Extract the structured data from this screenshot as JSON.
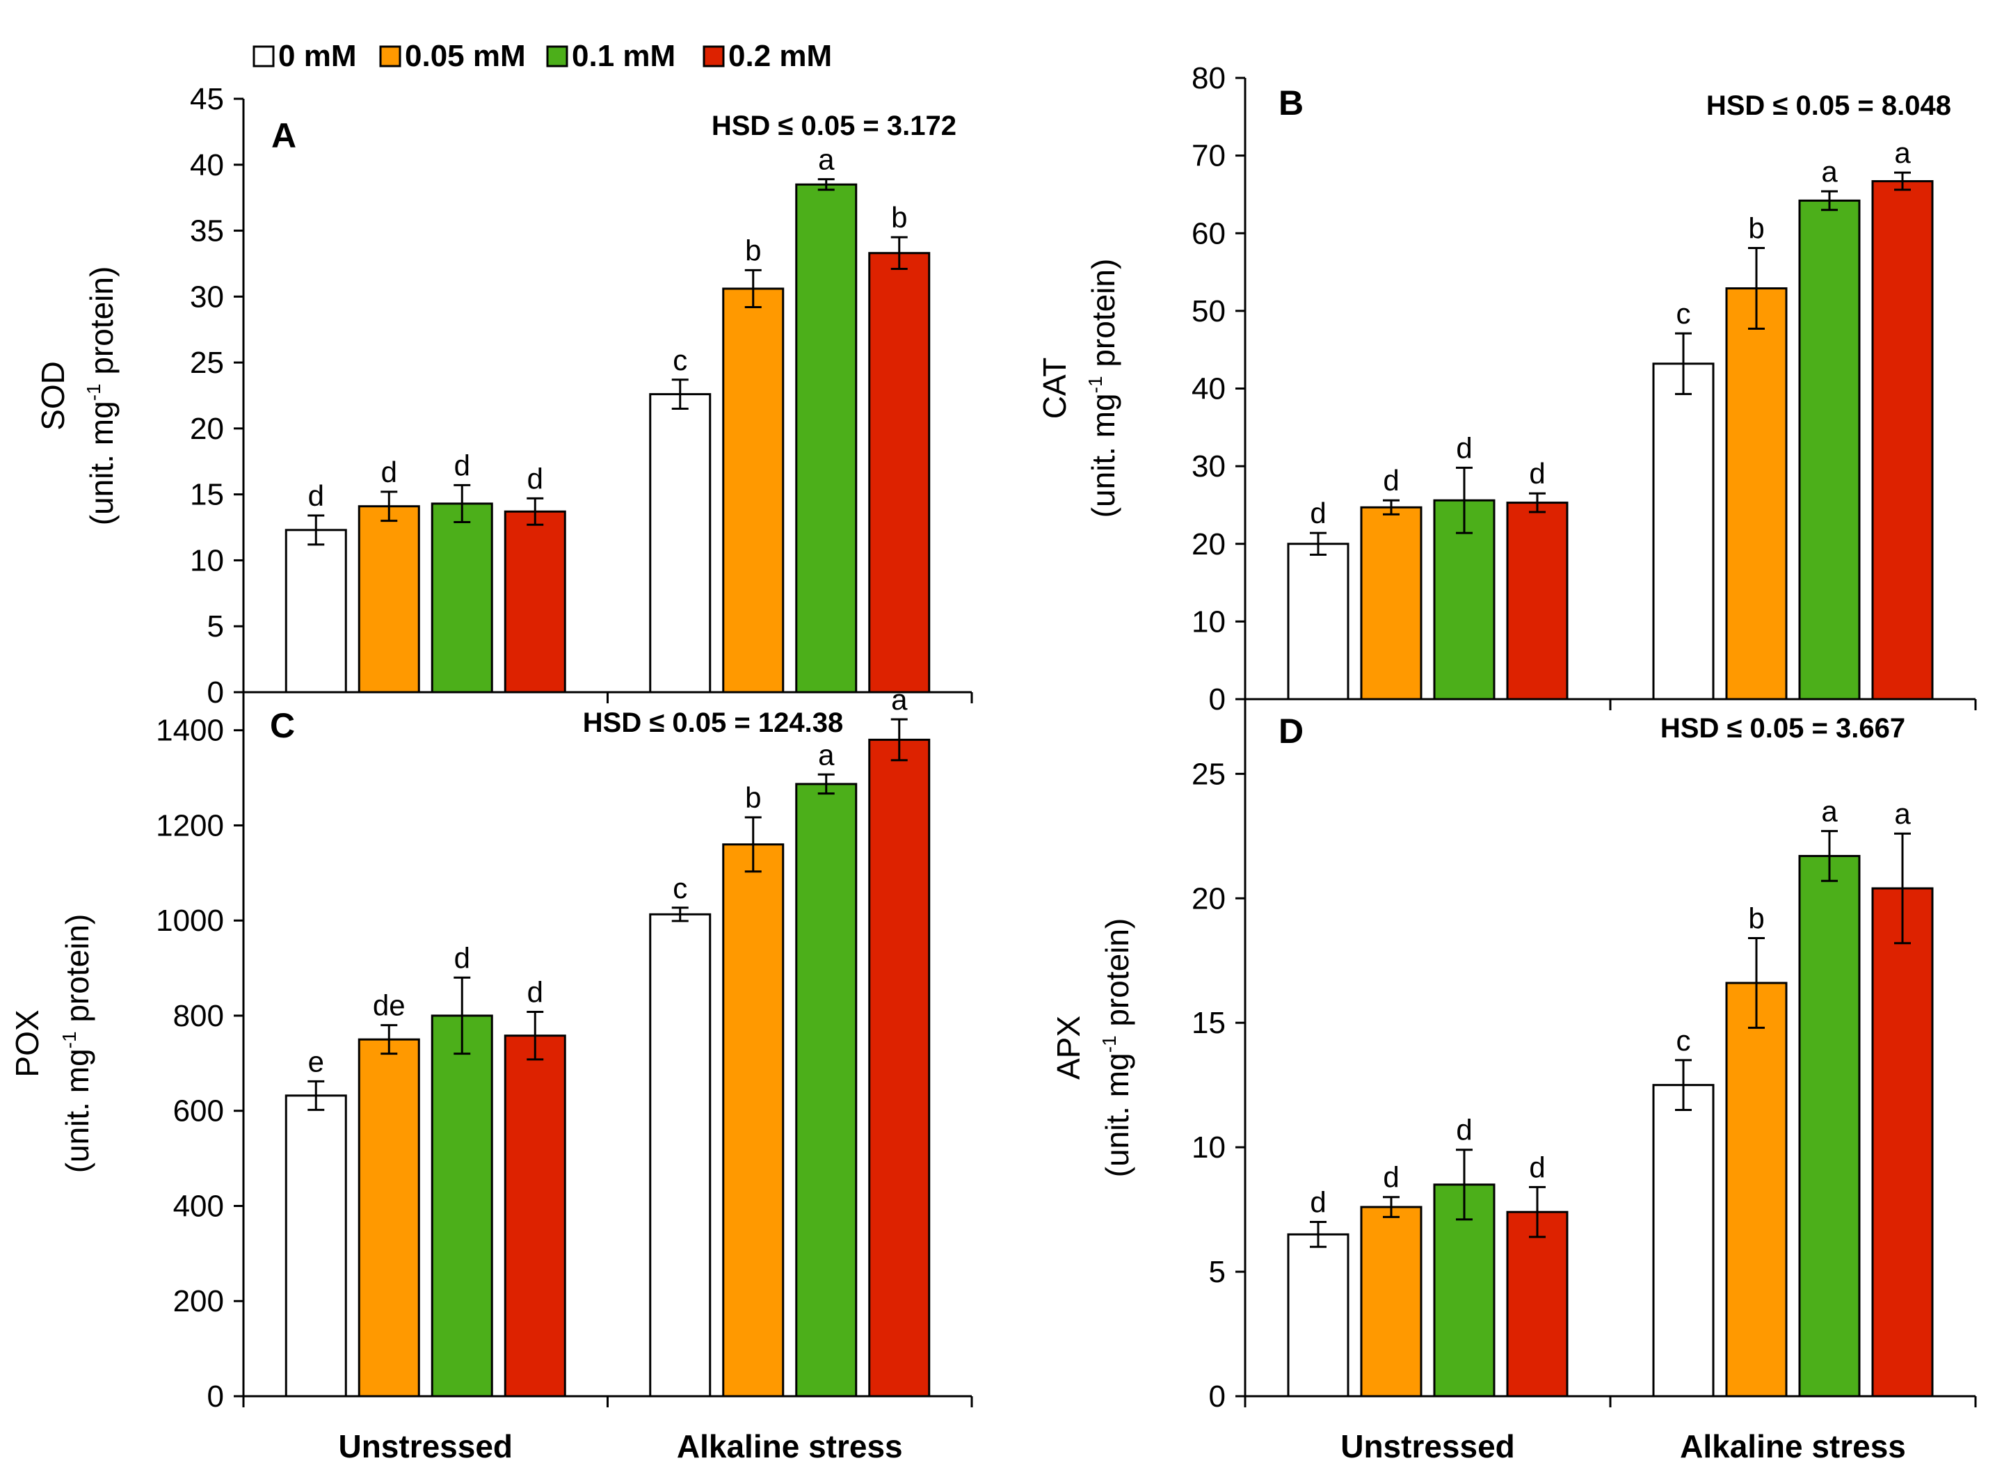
{
  "legend": [
    {
      "label": "0 mM",
      "color": "#ffffff"
    },
    {
      "label": "0.05 mM",
      "color": "#ff9900"
    },
    {
      "label": "0.1 mM",
      "color": "#4caf1a"
    },
    {
      "label": "0.2 mM",
      "color": "#dd2200"
    }
  ],
  "chart_data": [
    {
      "type": "bar",
      "panel": "A",
      "ylabel": "SOD",
      "ylabel_unit_pre": "(unit. mg",
      "ylabel_unit_sup": "-1",
      "ylabel_unit_post": " protein)",
      "hsd": "HSD ≤ 0.05 = 3.172",
      "ylim": [
        0,
        45
      ],
      "yticks": [
        0,
        5,
        10,
        15,
        20,
        25,
        30,
        35,
        40,
        45
      ],
      "categories": [
        "Unstressed",
        "Alkaline stress"
      ],
      "series": [
        {
          "name": "0 mM",
          "values": [
            12.3,
            22.6
          ],
          "errors": [
            1.1,
            1.1
          ],
          "letters": [
            "d",
            "c"
          ]
        },
        {
          "name": "0.05 mM",
          "values": [
            14.1,
            30.6
          ],
          "errors": [
            1.1,
            1.4
          ],
          "letters": [
            "d",
            "b"
          ]
        },
        {
          "name": "0.1 mM",
          "values": [
            14.3,
            38.5
          ],
          "errors": [
            1.4,
            0.4
          ],
          "letters": [
            "d",
            "a"
          ]
        },
        {
          "name": "0.2 mM",
          "values": [
            13.7,
            33.3
          ],
          "errors": [
            1.0,
            1.2
          ],
          "letters": [
            "d",
            "b"
          ]
        }
      ]
    },
    {
      "type": "bar",
      "panel": "B",
      "ylabel": "CAT",
      "ylabel_unit_pre": "(unit. mg",
      "ylabel_unit_sup": "-1",
      "ylabel_unit_post": " protein)",
      "hsd": "HSD ≤ 0.05 = 8.048",
      "ylim": [
        0,
        80
      ],
      "yticks": [
        0,
        10,
        20,
        30,
        40,
        50,
        60,
        70,
        80
      ],
      "categories": [
        "Unstressed",
        "Alkaline stress"
      ],
      "series": [
        {
          "name": "0 mM",
          "values": [
            20.0,
            43.2
          ],
          "errors": [
            1.4,
            3.9
          ],
          "letters": [
            "d",
            "c"
          ]
        },
        {
          "name": "0.05 mM",
          "values": [
            24.7,
            52.9
          ],
          "errors": [
            0.9,
            5.2
          ],
          "letters": [
            "d",
            "b"
          ]
        },
        {
          "name": "0.1 mM",
          "values": [
            25.6,
            64.2
          ],
          "errors": [
            4.2,
            1.2
          ],
          "letters": [
            "d",
            "a"
          ]
        },
        {
          "name": "0.2 mM",
          "values": [
            25.3,
            66.7
          ],
          "errors": [
            1.2,
            1.1
          ],
          "letters": [
            "d",
            "a"
          ]
        }
      ]
    },
    {
      "type": "bar",
      "panel": "C",
      "ylabel": "POX",
      "ylabel_unit_pre": "(unit. mg",
      "ylabel_unit_sup": "-1",
      "ylabel_unit_post": " protein)",
      "hsd": "HSD ≤ 0.05 = 124.38",
      "ylim": [
        0,
        1480
      ],
      "yticks": [
        0,
        200,
        400,
        600,
        800,
        1000,
        1200,
        1400
      ],
      "categories": [
        "Unstressed",
        "Alkaline stress"
      ],
      "series": [
        {
          "name": "0 mM",
          "values": [
            632,
            1013
          ],
          "errors": [
            30,
            14
          ],
          "letters": [
            "e",
            "c"
          ]
        },
        {
          "name": "0.05 mM",
          "values": [
            750,
            1160
          ],
          "errors": [
            30,
            57
          ],
          "letters": [
            "de",
            "b"
          ]
        },
        {
          "name": "0.1 mM",
          "values": [
            800,
            1287
          ],
          "errors": [
            80,
            20
          ],
          "letters": [
            "d",
            "a"
          ]
        },
        {
          "name": "0.2 mM",
          "values": [
            758,
            1380
          ],
          "errors": [
            50,
            43
          ],
          "letters": [
            "d",
            "a"
          ]
        }
      ]
    },
    {
      "type": "bar",
      "panel": "D",
      "ylabel": "APX",
      "ylabel_unit_pre": "(unit. mg",
      "ylabel_unit_sup": "-1",
      "ylabel_unit_post": " protein)",
      "hsd": "HSD ≤ 0.05 = 3.667",
      "ylim": [
        0,
        28
      ],
      "yticks": [
        0,
        5,
        10,
        15,
        20,
        25
      ],
      "categories": [
        "Unstressed",
        "Alkaline stress"
      ],
      "series": [
        {
          "name": "0 mM",
          "values": [
            6.5,
            12.5
          ],
          "errors": [
            0.5,
            1.0
          ],
          "letters": [
            "d",
            "c"
          ]
        },
        {
          "name": "0.05 mM",
          "values": [
            7.6,
            16.6
          ],
          "errors": [
            0.4,
            1.8
          ],
          "letters": [
            "d",
            "b"
          ]
        },
        {
          "name": "0.1 mM",
          "values": [
            8.5,
            21.7
          ],
          "errors": [
            1.4,
            1.0
          ],
          "letters": [
            "d",
            "a"
          ]
        },
        {
          "name": "0.2 mM",
          "values": [
            7.4,
            20.4
          ],
          "errors": [
            1.0,
            2.2
          ],
          "letters": [
            "d",
            "a"
          ]
        }
      ]
    }
  ]
}
